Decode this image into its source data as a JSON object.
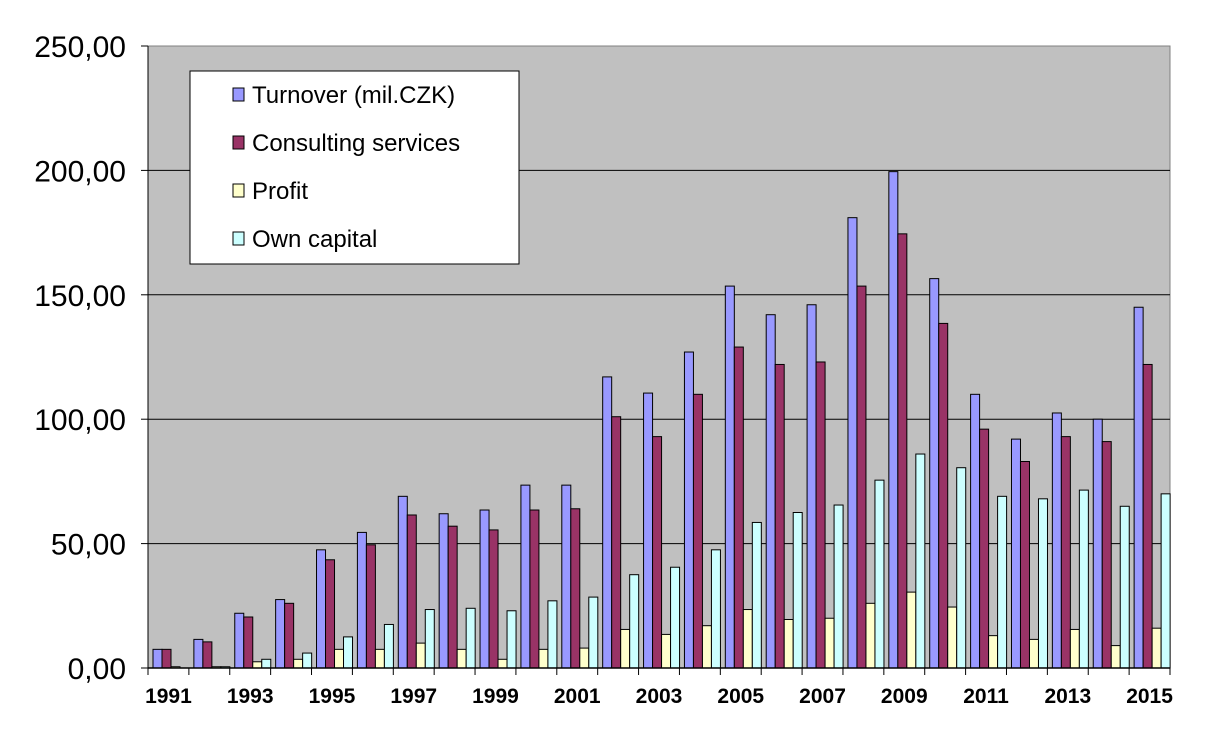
{
  "chart_data": {
    "type": "bar",
    "title": "",
    "xlabel": "",
    "ylabel": "",
    "ylim": [
      0,
      250
    ],
    "yticks": [
      0,
      50,
      100,
      150,
      200,
      250
    ],
    "ytick_labels": [
      "0,00",
      "50,00",
      "100,00",
      "150,00",
      "200,00",
      "250,00"
    ],
    "grid": "horizontal",
    "legend_position": "top-left",
    "categories": [
      "1991",
      "1992",
      "1993",
      "1994",
      "1995",
      "1996",
      "1997",
      "1998",
      "1999",
      "2000",
      "2001",
      "2002",
      "2003",
      "2004",
      "2005",
      "2006",
      "2007",
      "2008",
      "2009",
      "2010",
      "2011",
      "2012",
      "2013",
      "2014",
      "2015"
    ],
    "xtick_labels": [
      "1991",
      "1993",
      "1995",
      "1997",
      "1999",
      "2001",
      "2003",
      "2005",
      "2007",
      "2009",
      "2011",
      "2013",
      "2015"
    ],
    "series": [
      {
        "name": "Turnover (mil.CZK)",
        "color": "#9999ff",
        "values": [
          7.5,
          11.5,
          22,
          27.5,
          47.5,
          54.5,
          69,
          62,
          63.5,
          73.5,
          73.5,
          117,
          110.5,
          127,
          153.5,
          142,
          146,
          181,
          199.5,
          156.5,
          110,
          92,
          102.5,
          100,
          145
        ]
      },
      {
        "name": "Consulting services",
        "color": "#993366",
        "values": [
          7.5,
          10.5,
          20.5,
          26,
          43.5,
          49.5,
          61.5,
          57,
          55.5,
          63.5,
          64,
          101,
          93,
          110,
          129,
          122,
          123,
          153.5,
          174.5,
          138.5,
          96,
          83,
          93,
          91,
          122
        ]
      },
      {
        "name": "Profit",
        "color": "#ffffcc",
        "values": [
          0.5,
          0.5,
          2.5,
          3.5,
          7.5,
          7.5,
          10,
          7.5,
          3.5,
          7.5,
          8,
          15.5,
          13.5,
          17,
          23.5,
          19.5,
          20,
          26,
          30.5,
          24.5,
          13,
          11.5,
          15.5,
          9,
          16
        ]
      },
      {
        "name": "Own capital",
        "color": "#ccffff",
        "values": [
          0,
          0.5,
          3.5,
          6,
          12.5,
          17.5,
          23.5,
          24,
          23,
          27,
          28.5,
          37.5,
          40.5,
          47.5,
          58.5,
          62.5,
          65.5,
          75.5,
          86,
          80.5,
          69,
          68,
          71.5,
          65,
          70
        ]
      }
    ]
  }
}
